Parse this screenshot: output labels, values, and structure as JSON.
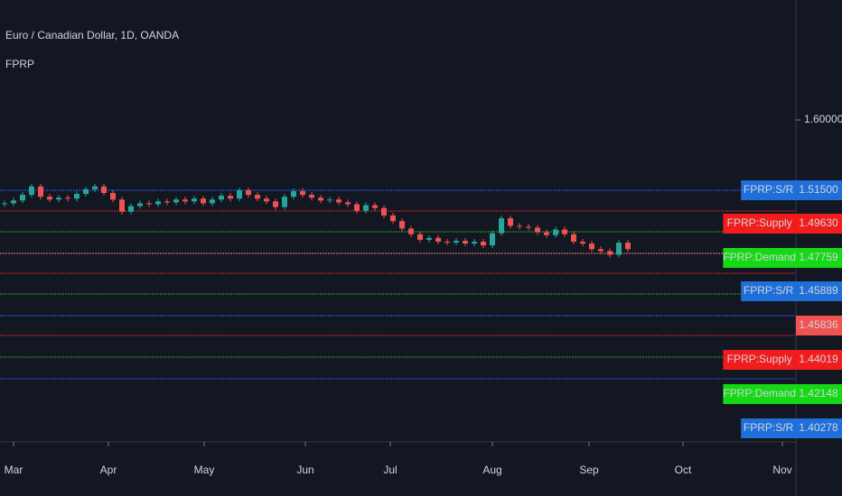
{
  "chart_data": {
    "type": "candlestick",
    "title": "Euro / Canadian Dollar, 1D, OANDA",
    "indicator": "FPRP",
    "up_color": "#26a69a",
    "down_color": "#ef5350",
    "closes": [
      1.511,
      1.514,
      1.52,
      1.529,
      1.518,
      1.515,
      1.517,
      1.516,
      1.521,
      1.526,
      1.529,
      1.522,
      1.515,
      1.502,
      1.508,
      1.511,
      1.51,
      1.513,
      1.512,
      1.515,
      1.513,
      1.516,
      1.511,
      1.515,
      1.519,
      1.516,
      1.525,
      1.52,
      1.516,
      1.513,
      1.507,
      1.518,
      1.524,
      1.52,
      1.517,
      1.514,
      1.515,
      1.512,
      1.51,
      1.503,
      1.509,
      1.506,
      1.498,
      1.492,
      1.484,
      1.478,
      1.472,
      1.474,
      1.47,
      1.469,
      1.471,
      1.468,
      1.47,
      1.466,
      1.479,
      1.495,
      1.487,
      1.486,
      1.485,
      1.48,
      1.477,
      1.483,
      1.478,
      1.47,
      1.468,
      1.462,
      1.46,
      1.456,
      1.469,
      1.462
    ],
    "xlim": [
      -0.5,
      87.5
    ],
    "xticks": [
      {
        "value": 1,
        "label": "Mar"
      },
      {
        "value": 11.5,
        "label": "Apr"
      },
      {
        "value": 22.1,
        "label": "May"
      },
      {
        "value": 33.3,
        "label": "Jun"
      },
      {
        "value": 42.7,
        "label": "Jul"
      },
      {
        "value": 54,
        "label": "Aug"
      },
      {
        "value": 64.7,
        "label": "Sep"
      },
      {
        "value": 75.1,
        "label": "Oct"
      },
      {
        "value": 86.1,
        "label": "Nov"
      }
    ],
    "ylim": [
      1.2562,
      1.7281
    ],
    "yticks": [
      {
        "value": 1.6,
        "label": "1.60000"
      }
    ],
    "levels": [
      {
        "value": 1.5249,
        "color": "#2962ff"
      },
      {
        "value": 1.5028,
        "color": "#e02020"
      },
      {
        "value": 1.4806,
        "color": "#20b020"
      },
      {
        "value": 1.4575,
        "color": "#f77c80"
      },
      {
        "value": 1.4363,
        "color": "#e02020"
      },
      {
        "value": 1.4141,
        "color": "#20b020"
      },
      {
        "value": 1.391,
        "color": "#2962ff"
      },
      {
        "value": 1.3698,
        "color": "#e02020"
      },
      {
        "value": 1.3467,
        "color": "#20b020"
      },
      {
        "value": 1.3236,
        "color": "#2962ff"
      }
    ],
    "price_labels": [
      {
        "tag": "FPRP:S/R",
        "value": 1.515,
        "label": "1.51500",
        "color": "#1e6fd9"
      },
      {
        "tag": "FPRP:Supply",
        "value": 1.4963,
        "label": "1.49630",
        "color": "#f21c1c"
      },
      {
        "tag": "FPRP:Demand",
        "value": 1.47759,
        "label": "1.47759",
        "color": "#16d916"
      },
      {
        "tag": "FPRP:S/R",
        "value": 1.45889,
        "label": "1.45889",
        "color": "#1e6fd9"
      },
      {
        "value": 1.45836,
        "label": "1.45836",
        "color": "#f05350"
      },
      {
        "tag": "FPRP:Supply",
        "value": 1.44019,
        "label": "1.44019",
        "color": "#f21c1c"
      },
      {
        "tag": "FPRP:Demand",
        "value": 1.42148,
        "label": "1.42148",
        "color": "#16d916"
      },
      {
        "tag": "FPRP:S/R",
        "value": 1.40278,
        "label": "1.40278",
        "color": "#1e6fd9"
      }
    ]
  }
}
